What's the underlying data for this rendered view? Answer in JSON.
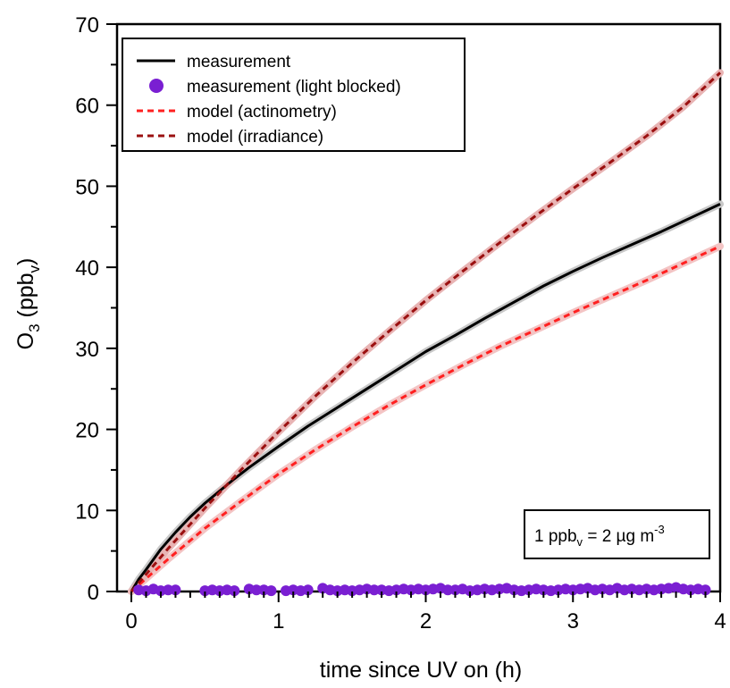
{
  "chart_data": {
    "type": "line",
    "xlabel": "time since UV on (h)",
    "ylabel": {
      "main": "O",
      "sub": "3",
      "unit_open": " (ppb",
      "unit_sub": "v",
      "unit_close": ")"
    },
    "xlim": [
      0,
      4
    ],
    "ylim": [
      0,
      70
    ],
    "x_ticks": [
      0,
      1,
      2,
      3,
      4
    ],
    "y_ticks": [
      0,
      10,
      20,
      30,
      40,
      50,
      60,
      70
    ],
    "grid": false,
    "legend_position": "top-left",
    "annotation": {
      "prefix": "1 ppb",
      "sub": "v",
      "middle": " = 2 µg m",
      "sup": "-3",
      "position": "bottom-right"
    },
    "series": [
      {
        "name": "measurement",
        "style": "solid-line",
        "color": "#000000",
        "band_color": "#c8c8c8",
        "x": [
          0,
          0.05,
          0.1,
          0.2,
          0.3,
          0.4,
          0.5,
          0.6,
          0.7,
          0.8,
          0.9,
          1.0,
          1.2,
          1.4,
          1.6,
          1.8,
          2.0,
          2.2,
          2.4,
          2.6,
          2.8,
          3.0,
          3.2,
          3.4,
          3.6,
          3.8,
          4.0
        ],
        "y": [
          0,
          1.5,
          2.7,
          5.2,
          7.3,
          9.2,
          10.9,
          12.4,
          13.9,
          15.3,
          16.6,
          17.9,
          20.4,
          22.7,
          25.0,
          27.3,
          29.6,
          31.6,
          33.7,
          35.7,
          37.7,
          39.5,
          41.2,
          42.8,
          44.4,
          46.1,
          47.8
        ]
      },
      {
        "name": "measurement (light blocked)",
        "style": "markers",
        "color": "#7a1fd2",
        "x": [
          0.05,
          0.1,
          0.15,
          0.2,
          0.25,
          0.3,
          0.5,
          0.55,
          0.6,
          0.65,
          0.7,
          0.8,
          0.85,
          0.9,
          0.95,
          1.05,
          1.1,
          1.15,
          1.2,
          1.3,
          1.35,
          1.4,
          1.45,
          1.5,
          1.55,
          1.6,
          1.65,
          1.7,
          1.75,
          1.8,
          1.85,
          1.9,
          1.95,
          2.0,
          2.05,
          2.1,
          2.15,
          2.2,
          2.25,
          2.3,
          2.35,
          2.4,
          2.45,
          2.5,
          2.55,
          2.6,
          2.65,
          2.7,
          2.75,
          2.8,
          2.85,
          2.9,
          2.95,
          3.0,
          3.05,
          3.1,
          3.15,
          3.2,
          3.25,
          3.3,
          3.35,
          3.4,
          3.45,
          3.5,
          3.55,
          3.6,
          3.65,
          3.7,
          3.75,
          3.8,
          3.85,
          3.9
        ],
        "y": [
          0.2,
          0.1,
          0.3,
          0.1,
          0.2,
          0.2,
          0.1,
          0.2,
          0.1,
          0.2,
          0.1,
          0.3,
          0.2,
          0.2,
          0.1,
          0.1,
          0.2,
          0.1,
          0.2,
          0.4,
          0.2,
          0.1,
          0.2,
          0.1,
          0.2,
          0.3,
          0.2,
          0.2,
          0.1,
          0.2,
          0.3,
          0.2,
          0.3,
          0.2,
          0.3,
          0.4,
          0.2,
          0.2,
          0.3,
          0.1,
          0.2,
          0.3,
          0.2,
          0.3,
          0.4,
          0.2,
          0.1,
          0.2,
          0.3,
          0.2,
          0.1,
          0.2,
          0.3,
          0.2,
          0.3,
          0.4,
          0.2,
          0.3,
          0.2,
          0.4,
          0.2,
          0.3,
          0.2,
          0.3,
          0.2,
          0.3,
          0.4,
          0.5,
          0.3,
          0.2,
          0.3,
          0.2
        ]
      },
      {
        "name": "model (actinometry)",
        "style": "dashed-line",
        "color": "#ff2020",
        "band_color": "#f3c4c4",
        "x": [
          0,
          0.25,
          0.5,
          0.75,
          1.0,
          1.25,
          1.5,
          1.75,
          2.0,
          2.25,
          2.5,
          2.75,
          3.0,
          3.25,
          3.5,
          3.75,
          4.0
        ],
        "y": [
          0,
          4.0,
          7.8,
          11.2,
          14.5,
          17.5,
          20.3,
          23.0,
          25.5,
          27.9,
          30.2,
          32.3,
          34.4,
          36.4,
          38.4,
          40.5,
          42.6
        ]
      },
      {
        "name": "model (irradiance)",
        "style": "dashed-line",
        "color": "#9b1010",
        "band_color": "#e8b4b4",
        "x": [
          0,
          0.25,
          0.5,
          0.75,
          1.0,
          1.25,
          1.5,
          1.75,
          2.0,
          2.25,
          2.5,
          2.75,
          3.0,
          3.25,
          3.5,
          3.75,
          4.0
        ],
        "y": [
          0,
          5.3,
          10.3,
          15.1,
          19.7,
          24.1,
          28.2,
          32.1,
          35.9,
          39.5,
          43.0,
          46.4,
          49.7,
          52.9,
          56.2,
          59.8,
          64.0
        ]
      }
    ]
  }
}
